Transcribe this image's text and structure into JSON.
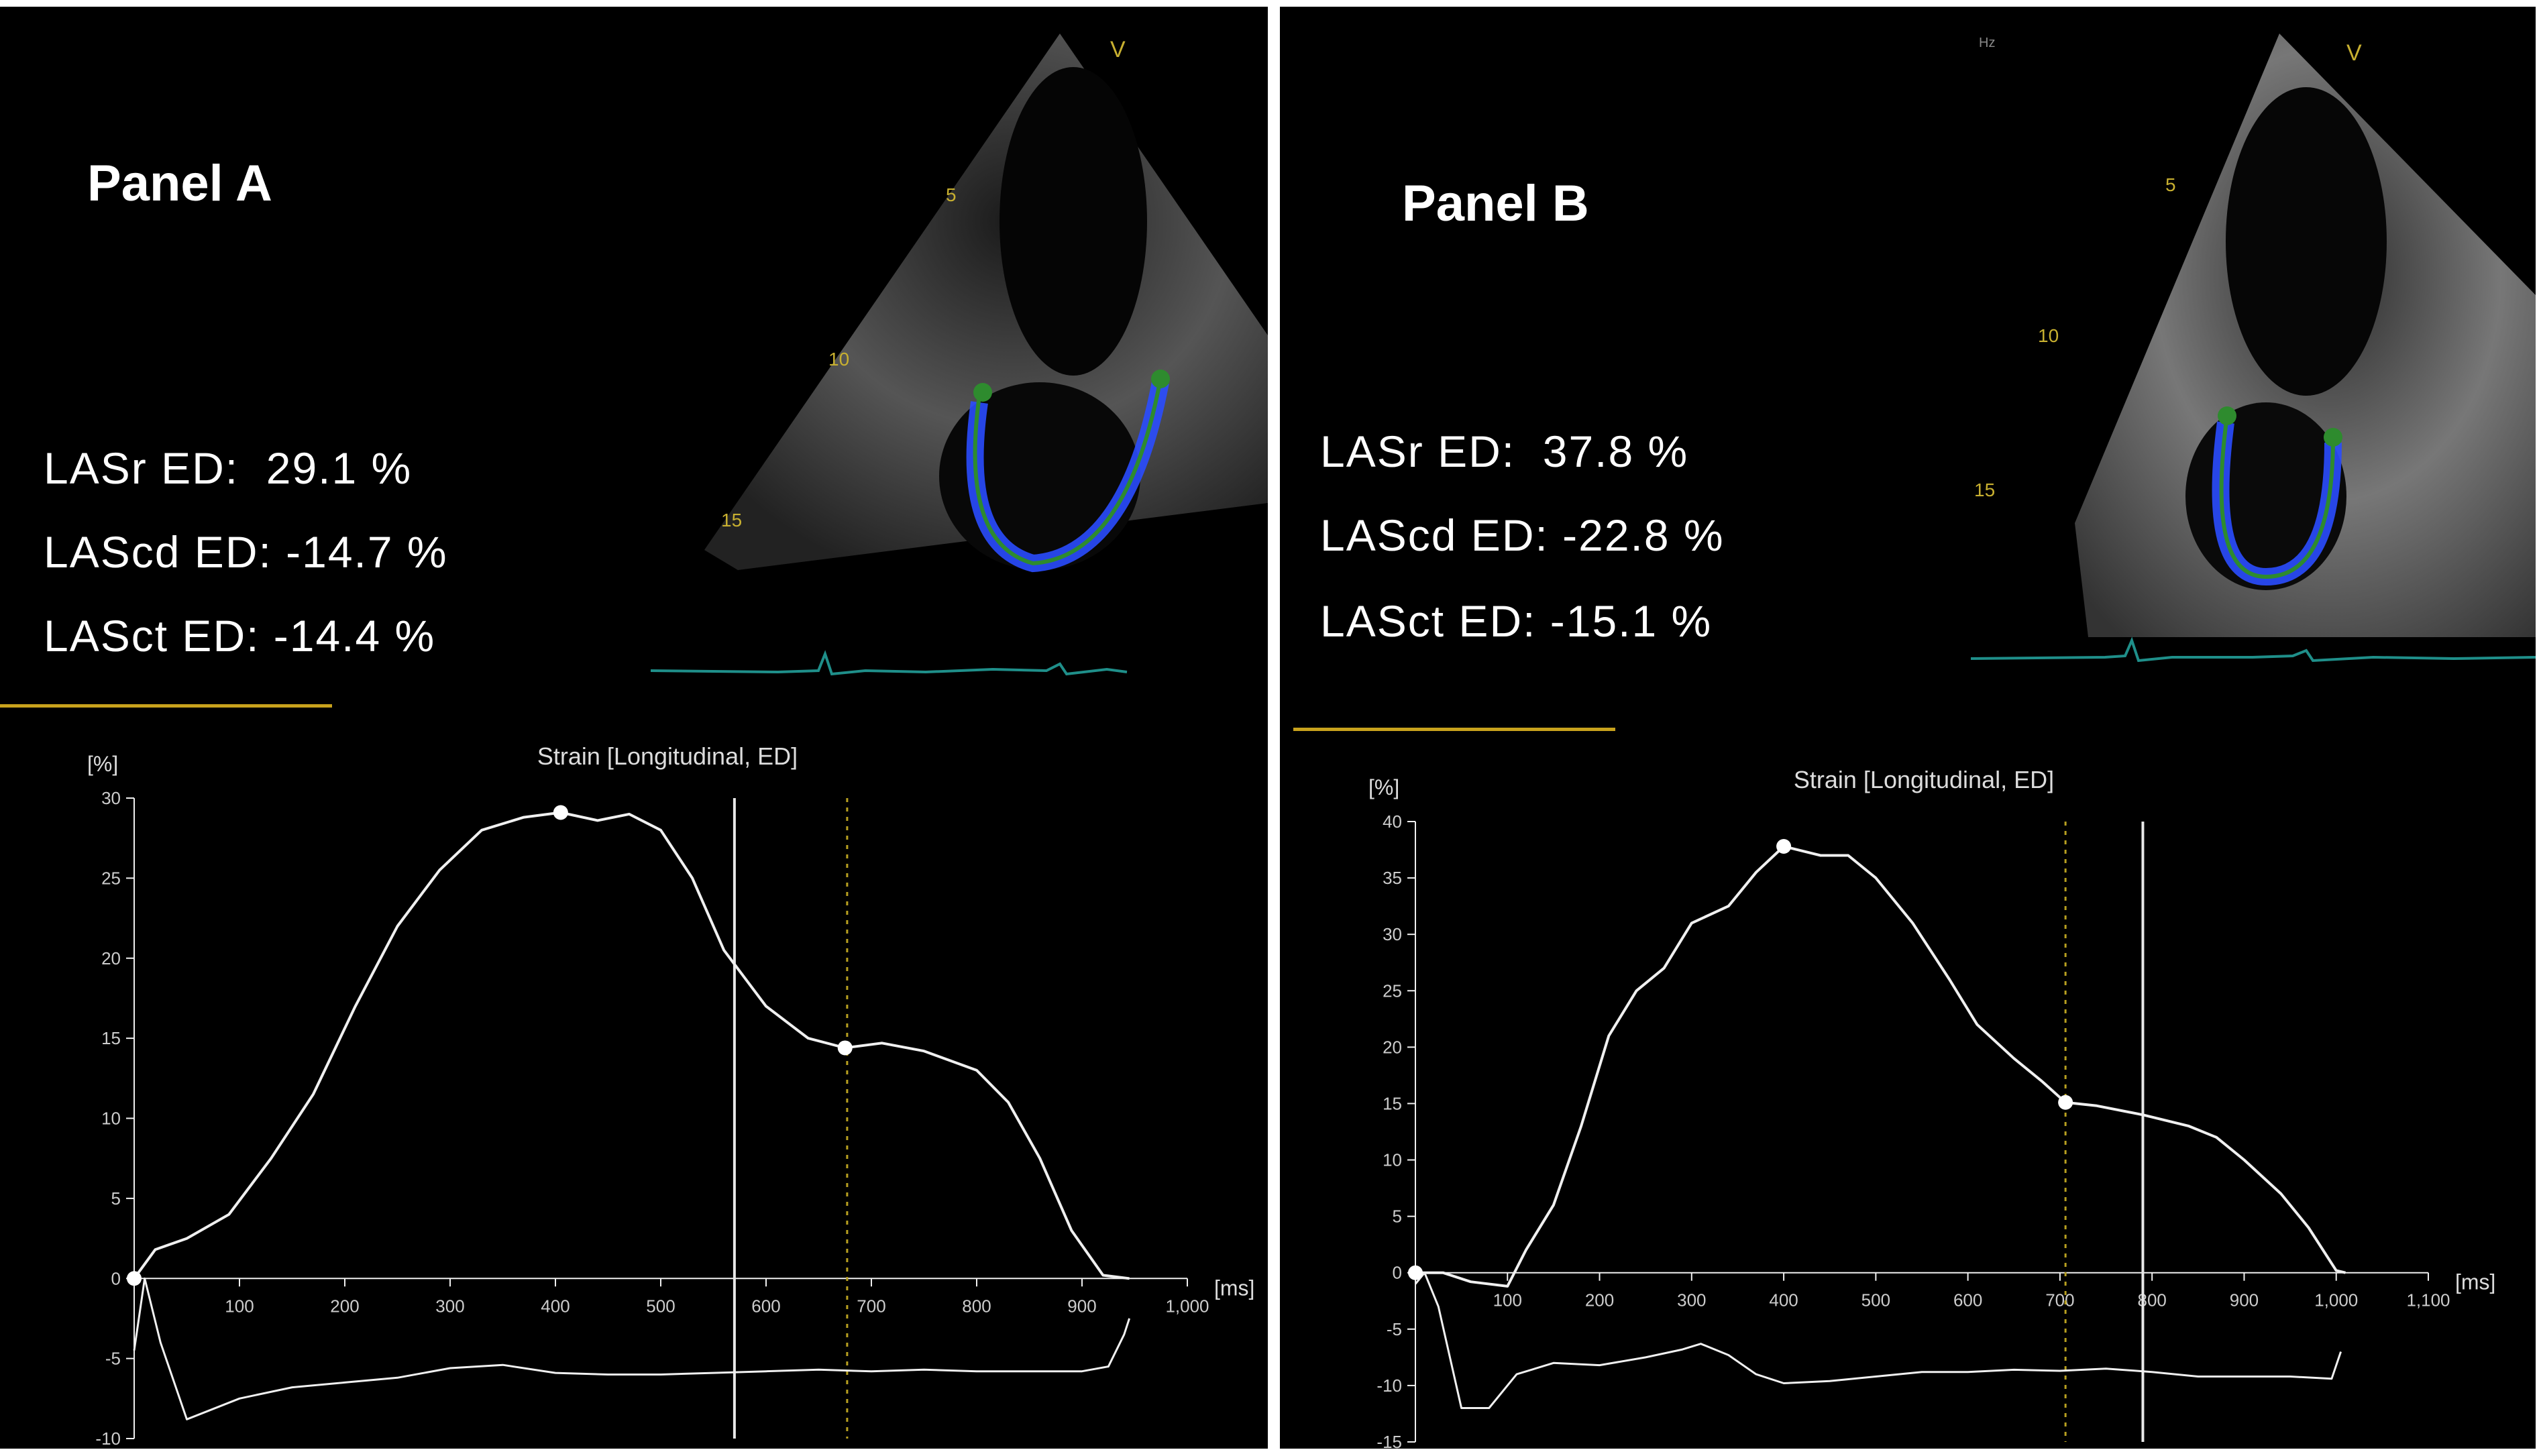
{
  "colors": {
    "background": "#000000",
    "curve": "#f0f0f0",
    "underline": "#c8a21d",
    "contour": "#2e8b2e",
    "tracking": "#2a4dff",
    "ecg": "#1f8f8a"
  },
  "panels": [
    {
      "title": "Panel A",
      "metrics": [
        "LASr ED:  29.1 %",
        "LAScd ED: -14.7 %",
        "LASct ED: -14.4 %"
      ],
      "echo_depth_labels": [
        "5",
        "10",
        "15"
      ],
      "echo_marker": "V"
    },
    {
      "title": "Panel B",
      "metrics": [
        "LASr ED:  37.8 %",
        "LAScd ED: -22.8 %",
        "LASct ED: -15.1 %"
      ],
      "echo_depth_labels": [
        "5",
        "10",
        "15"
      ],
      "echo_marker": "V",
      "echo_unit": "Hz"
    }
  ],
  "chart_data": [
    {
      "type": "line",
      "title": "Strain [Longitudinal, ED]",
      "ylabel": "[%]",
      "xlabel": "[ms]",
      "xlim": [
        0,
        1000
      ],
      "ylim": [
        -10,
        30
      ],
      "yticks": [
        "-10",
        "-5",
        "0",
        "5",
        "10",
        "15",
        "20",
        "25",
        "30"
      ],
      "xticks": [
        "100",
        "200",
        "300",
        "400",
        "500",
        "600",
        "700",
        "800",
        "900",
        "1,000"
      ],
      "series": [
        {
          "values": [
            [
              0,
              0
            ],
            [
              20,
              1.8
            ],
            [
              50,
              2.5
            ],
            [
              90,
              4
            ],
            [
              130,
              7.5
            ],
            [
              170,
              11.5
            ],
            [
              210,
              17
            ],
            [
              250,
              22
            ],
            [
              290,
              25.5
            ],
            [
              330,
              28
            ],
            [
              370,
              28.8
            ],
            [
              405,
              29.1
            ],
            [
              440,
              28.6
            ],
            [
              470,
              29
            ],
            [
              500,
              28
            ],
            [
              530,
              25
            ],
            [
              560,
              20.5
            ],
            [
              600,
              17
            ],
            [
              640,
              15
            ],
            [
              675,
              14.4
            ],
            [
              710,
              14.7
            ],
            [
              750,
              14.2
            ],
            [
              800,
              13
            ],
            [
              830,
              11
            ],
            [
              860,
              7.5
            ],
            [
              890,
              3
            ],
            [
              920,
              0.2
            ],
            [
              945,
              0
            ]
          ]
        },
        {
          "values": [
            [
              0,
              -4.5
            ],
            [
              10,
              0
            ],
            [
              25,
              -4
            ],
            [
              50,
              -8.8
            ],
            [
              100,
              -7.5
            ],
            [
              150,
              -6.8
            ],
            [
              200,
              -6.5
            ],
            [
              250,
              -6.2
            ],
            [
              300,
              -5.6
            ],
            [
              350,
              -5.4
            ],
            [
              400,
              -5.9
            ],
            [
              450,
              -6
            ],
            [
              500,
              -6
            ],
            [
              550,
              -5.9
            ],
            [
              600,
              -5.8
            ],
            [
              650,
              -5.7
            ],
            [
              700,
              -5.8
            ],
            [
              750,
              -5.7
            ],
            [
              800,
              -5.8
            ],
            [
              850,
              -5.8
            ],
            [
              900,
              -5.8
            ],
            [
              925,
              -5.5
            ],
            [
              940,
              -3.5
            ],
            [
              945,
              -2.5
            ]
          ]
        }
      ],
      "markers": [
        [
          0,
          0
        ],
        [
          405,
          29.1
        ],
        [
          675,
          14.4
        ]
      ],
      "vlines": [
        {
          "x": 570,
          "style": "solid"
        },
        {
          "x": 677,
          "style": "dotted"
        }
      ]
    },
    {
      "type": "line",
      "title": "Strain [Longitudinal, ED]",
      "ylabel": "[%]",
      "xlabel": "[ms]",
      "xlim": [
        0,
        1100
      ],
      "ylim": [
        -15,
        40
      ],
      "yticks": [
        "-15",
        "-10",
        "-5",
        "0",
        "5",
        "10",
        "15",
        "20",
        "25",
        "30",
        "35",
        "40"
      ],
      "xticks": [
        "100",
        "200",
        "300",
        "400",
        "500",
        "600",
        "700",
        "800",
        "900",
        "1,000",
        "1,100"
      ],
      "series": [
        {
          "values": [
            [
              0,
              0
            ],
            [
              30,
              0
            ],
            [
              60,
              -0.8
            ],
            [
              100,
              -1.2
            ],
            [
              120,
              2
            ],
            [
              150,
              6
            ],
            [
              180,
              13
            ],
            [
              210,
              21
            ],
            [
              240,
              25
            ],
            [
              270,
              27
            ],
            [
              300,
              31
            ],
            [
              340,
              32.5
            ],
            [
              370,
              35.5
            ],
            [
              400,
              37.8
            ],
            [
              440,
              37
            ],
            [
              470,
              37
            ],
            [
              500,
              35
            ],
            [
              540,
              31
            ],
            [
              580,
              26
            ],
            [
              610,
              22
            ],
            [
              650,
              19
            ],
            [
              680,
              17
            ],
            [
              706,
              15.1
            ],
            [
              740,
              14.8
            ],
            [
              790,
              14
            ],
            [
              840,
              13
            ],
            [
              870,
              12
            ],
            [
              900,
              10
            ],
            [
              940,
              7
            ],
            [
              970,
              4
            ],
            [
              1000,
              0.2
            ],
            [
              1010,
              0
            ]
          ]
        },
        {
          "values": [
            [
              0,
              -1
            ],
            [
              10,
              0
            ],
            [
              25,
              -3
            ],
            [
              50,
              -12
            ],
            [
              80,
              -12
            ],
            [
              110,
              -9
            ],
            [
              150,
              -8
            ],
            [
              200,
              -8.2
            ],
            [
              250,
              -7.5
            ],
            [
              290,
              -6.8
            ],
            [
              310,
              -6.3
            ],
            [
              340,
              -7.3
            ],
            [
              370,
              -9
            ],
            [
              400,
              -9.8
            ],
            [
              450,
              -9.6
            ],
            [
              500,
              -9.2
            ],
            [
              550,
              -8.8
            ],
            [
              600,
              -8.8
            ],
            [
              650,
              -8.6
            ],
            [
              700,
              -8.7
            ],
            [
              750,
              -8.5
            ],
            [
              800,
              -8.8
            ],
            [
              850,
              -9.2
            ],
            [
              900,
              -9.2
            ],
            [
              950,
              -9.2
            ],
            [
              995,
              -9.4
            ],
            [
              1005,
              -7
            ]
          ]
        }
      ],
      "markers": [
        [
          0,
          0
        ],
        [
          400,
          37.8
        ],
        [
          706,
          15.1
        ]
      ],
      "vlines": [
        {
          "x": 706,
          "style": "dotted"
        },
        {
          "x": 790,
          "style": "solid"
        }
      ]
    }
  ]
}
